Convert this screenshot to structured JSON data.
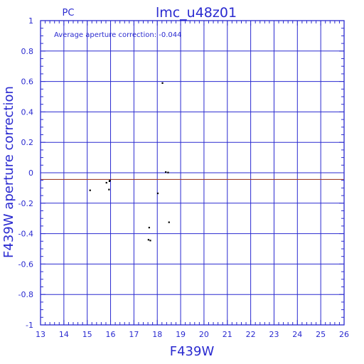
{
  "header": {
    "camera": "PC",
    "dataset": "lmc_u48z01"
  },
  "annotation": "Average aperture correction: -0.044",
  "colors": {
    "axis": "#2a2ad0",
    "grid": "#2a2ad0",
    "average_line": "#a0402a",
    "points": "#000000",
    "background": "#ffffff"
  },
  "chart_data": {
    "type": "scatter",
    "xlabel": "F439W",
    "ylabel": "F439W aperture correction",
    "xlim": [
      13,
      26
    ],
    "ylim": [
      -1,
      1
    ],
    "xticks": [
      "13",
      "14",
      "15",
      "16",
      "17",
      "18",
      "19",
      "20",
      "21",
      "22",
      "23",
      "24",
      "25",
      "26"
    ],
    "yticks": [
      "-1",
      "-0.8",
      "-0.6",
      "-0.4",
      "-0.2",
      "0",
      "0.2",
      "0.4",
      "0.6",
      "0.8",
      "1"
    ],
    "grid": true,
    "average_line_y": -0.044,
    "series": [
      {
        "points": [
          {
            "x": 15.12,
            "y": -0.115
          },
          {
            "x": 15.82,
            "y": -0.065
          },
          {
            "x": 15.95,
            "y": -0.055
          },
          {
            "x": 15.97,
            "y": -0.05
          },
          {
            "x": 15.93,
            "y": -0.11
          },
          {
            "x": 17.65,
            "y": -0.36
          },
          {
            "x": 17.62,
            "y": -0.44
          },
          {
            "x": 17.7,
            "y": -0.445
          },
          {
            "x": 18.02,
            "y": -0.135
          },
          {
            "x": 18.22,
            "y": 0.59
          },
          {
            "x": 18.36,
            "y": 0.005
          },
          {
            "x": 18.46,
            "y": 0.002
          },
          {
            "x": 18.5,
            "y": -0.325
          }
        ]
      }
    ]
  }
}
